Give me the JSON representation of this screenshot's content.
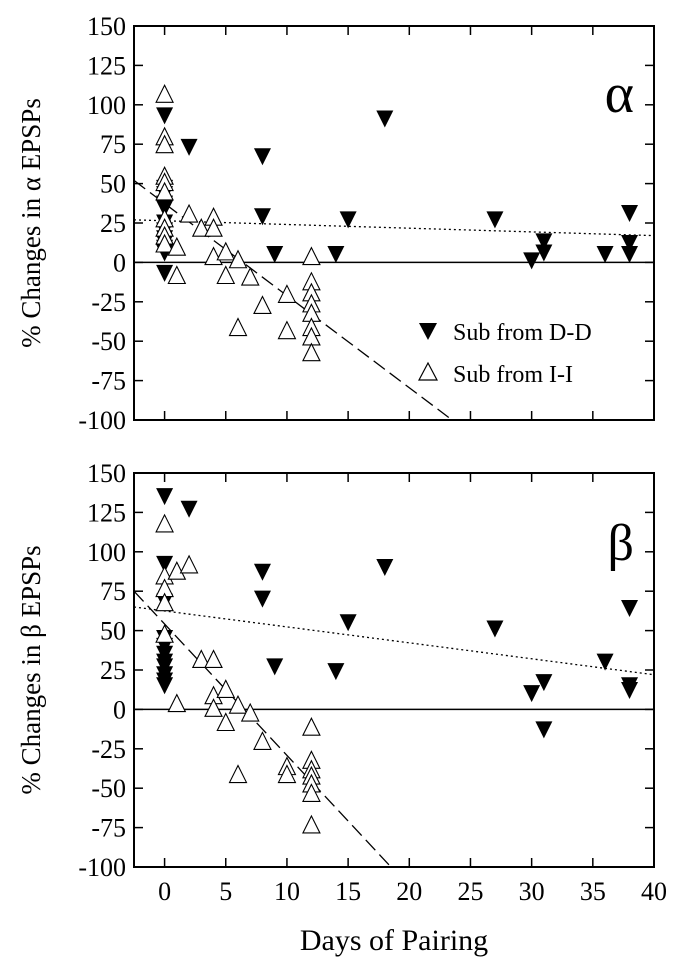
{
  "xlabel": "Days of Pairing",
  "chart_data": [
    {
      "type": "scatter",
      "panel_label": "α",
      "ylabel": "% Changes in α EPSPs",
      "xlim": [
        -2.5,
        40
      ],
      "ylim": [
        -100,
        150
      ],
      "x_ticks": [
        0,
        5,
        10,
        15,
        20,
        25,
        30,
        35,
        40
      ],
      "y_ticks": [
        -100,
        -75,
        -50,
        -25,
        0,
        25,
        50,
        75,
        100,
        125,
        150
      ],
      "zero_line": true,
      "legend": {
        "position": "bottom-right",
        "entries": [
          "Sub from D-D",
          "Sub from I-I"
        ]
      },
      "series": [
        {
          "name": "Sub from D-D",
          "marker": "filled-down-triangle",
          "x": [
            0,
            0,
            0,
            0,
            0,
            0,
            0,
            0,
            0,
            0,
            0,
            0,
            2,
            8,
            8,
            9,
            14,
            15,
            18,
            27,
            30,
            31,
            31,
            36,
            38,
            38,
            38
          ],
          "y": [
            93,
            47,
            43,
            37,
            34,
            25,
            20,
            15,
            12,
            9,
            6,
            -7,
            73,
            67,
            29,
            5,
            5,
            27,
            91,
            27,
            1,
            13,
            6,
            5,
            31,
            12,
            5
          ],
          "fit": {
            "style": "dotted",
            "x": [
              -2.5,
              40
            ],
            "y": [
              27,
              17
            ]
          }
        },
        {
          "name": "Sub from I-I",
          "marker": "open-up-triangle",
          "x": [
            0,
            0,
            0,
            0,
            0,
            0,
            0,
            0,
            0,
            0,
            1,
            1,
            2,
            3,
            4,
            4,
            4,
            5,
            5,
            6,
            6,
            7,
            8,
            10,
            10,
            12,
            12,
            12,
            12,
            12,
            12,
            12,
            12
          ],
          "y": [
            107,
            80,
            75,
            55,
            51,
            45,
            28,
            22,
            17,
            12,
            10,
            -8,
            31,
            22,
            29,
            22,
            4,
            7,
            -8,
            2,
            -41,
            -9,
            -27,
            -20,
            -43,
            4,
            -12,
            -19,
            -26,
            -32,
            -41,
            -47,
            -57
          ],
          "fit": {
            "style": "dashed",
            "x": [
              -2.5,
              23.5
            ],
            "y": [
              52,
              -100
            ]
          }
        }
      ]
    },
    {
      "type": "scatter",
      "panel_label": "β",
      "ylabel": "% Changes in β EPSPs",
      "xlim": [
        -2.5,
        40
      ],
      "ylim": [
        -100,
        150
      ],
      "x_ticks": [
        0,
        5,
        10,
        15,
        20,
        25,
        30,
        35,
        40
      ],
      "y_ticks": [
        -100,
        -75,
        -50,
        -25,
        0,
        25,
        50,
        75,
        100,
        125,
        150
      ],
      "zero_line": true,
      "series": [
        {
          "name": "Sub from D-D",
          "marker": "filled-down-triangle",
          "x": [
            0,
            0,
            0,
            0,
            0,
            0,
            0,
            0,
            0,
            0,
            0,
            2,
            8,
            8,
            9,
            14,
            15,
            18,
            27,
            30,
            31,
            31,
            36,
            38,
            38,
            38
          ],
          "y": [
            135,
            92,
            68,
            45,
            40,
            35,
            30,
            27,
            22,
            18,
            15,
            127,
            87,
            70,
            27,
            24,
            55,
            90,
            51,
            10,
            17,
            -13,
            30,
            64,
            15,
            12
          ],
          "fit": {
            "style": "dotted",
            "x": [
              -2.5,
              40
            ],
            "y": [
              65,
              22
            ]
          }
        },
        {
          "name": "Sub from I-I",
          "marker": "open-up-triangle",
          "x": [
            0,
            0,
            0,
            0,
            0,
            1,
            1,
            2,
            3,
            4,
            4,
            4,
            5,
            5,
            6,
            6,
            7,
            8,
            10,
            10,
            12,
            12,
            12,
            12,
            12,
            12,
            12
          ],
          "y": [
            118,
            85,
            77,
            68,
            48,
            88,
            4,
            92,
            32,
            32,
            9,
            1,
            13,
            -8,
            3,
            -41,
            -2,
            -20,
            -36,
            -41,
            -11,
            -32,
            -38,
            -42,
            -47,
            -53,
            -73
          ],
          "fit": {
            "style": "dashed",
            "x": [
              -2.5,
              18.5
            ],
            "y": [
              75,
              -100
            ]
          }
        }
      ]
    }
  ]
}
